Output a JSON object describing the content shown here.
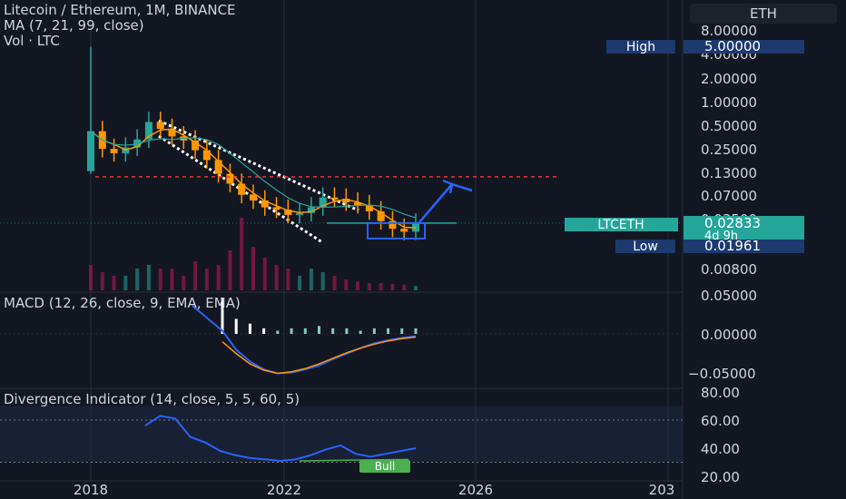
{
  "header": {
    "symbol_line": "Litecoin / Ethereum, 1M, BINANCE",
    "ma_line": "MA (7, 21, 99, close)",
    "vol_line": "Vol · LTC",
    "currency_button": "ETH"
  },
  "colors": {
    "background": "#131722",
    "up_candle": "#26a69a",
    "down_candle": "#ff9800",
    "grid": "#2a2e39",
    "accent_blue": "#2962ff",
    "text": "#d1d4dc",
    "red_dotted": "#e53935"
  },
  "price_axis": {
    "labels": [
      "8.00000",
      "4.00000",
      "2.00000",
      "1.00000",
      "0.50000",
      "0.25000",
      "0.13000",
      "0.07000",
      "0.03500",
      "0.01800",
      "0.00800"
    ],
    "high_label": "High",
    "high_value": "5.00000",
    "symbol_tag": "LTCETH",
    "last_price": "0.02833",
    "countdown": "4d 9h",
    "low_label": "Low",
    "low_value": "0.01961"
  },
  "macd": {
    "title": "MACD (12, 26, close, 9, EMA, EMA)",
    "axis_labels": [
      "0.05000",
      "0.00000",
      "−0.05000"
    ]
  },
  "divergence": {
    "title": "Divergence Indicator (14, close, 5, 5, 60, 5)",
    "axis_labels": [
      "80.00",
      "60.00",
      "40.00",
      "20.00"
    ],
    "bull_label": "Bull"
  },
  "time_axis": {
    "labels": [
      "2018",
      "2022",
      "2026",
      "203"
    ]
  },
  "chart_data": {
    "type": "candlestick",
    "scale": "log",
    "x": [
      "2017-12",
      "2018-03",
      "2018-06",
      "2018-09",
      "2018-12",
      "2019-03",
      "2019-06",
      "2019-09",
      "2019-12",
      "2020-03",
      "2020-06",
      "2020-09",
      "2020-12",
      "2021-03",
      "2021-06",
      "2021-09",
      "2021-12",
      "2022-03",
      "2022-06",
      "2022-09",
      "2022-12",
      "2023-03",
      "2023-06",
      "2023-09",
      "2023-12",
      "2024-03",
      "2024-06",
      "2024-09",
      "2024-12"
    ],
    "close": [
      0.42,
      0.25,
      0.22,
      0.26,
      0.33,
      0.55,
      0.45,
      0.36,
      0.32,
      0.24,
      0.18,
      0.12,
      0.09,
      0.065,
      0.055,
      0.045,
      0.042,
      0.036,
      0.038,
      0.045,
      0.06,
      0.058,
      0.052,
      0.048,
      0.04,
      0.03,
      0.024,
      0.022,
      0.028
    ],
    "high": 5.0,
    "low": 0.01961,
    "last": 0.02833,
    "resistance_level": 0.11,
    "volume_relative": [
      0.35,
      0.25,
      0.2,
      0.2,
      0.3,
      0.35,
      0.3,
      0.3,
      0.2,
      0.4,
      0.3,
      0.35,
      0.55,
      1.0,
      0.6,
      0.45,
      0.35,
      0.3,
      0.2,
      0.3,
      0.25,
      0.2,
      0.15,
      0.12,
      0.1,
      0.1,
      0.09,
      0.08,
      0.06
    ],
    "macd_line": [
      0.004,
      -0.02,
      -0.035,
      -0.045,
      -0.05,
      -0.049,
      -0.045,
      -0.04,
      -0.032,
      -0.025,
      -0.018,
      -0.012,
      -0.008,
      -0.005,
      -0.003
    ],
    "signal_line": [
      -0.01,
      -0.025,
      -0.038,
      -0.046,
      -0.05,
      -0.048,
      -0.044,
      -0.038,
      -0.031,
      -0.024,
      -0.018,
      -0.013,
      -0.009,
      -0.006,
      -0.004
    ],
    "rsi": [
      56,
      63,
      61,
      48,
      44,
      38,
      35,
      33,
      32,
      31,
      32,
      35,
      39,
      42,
      36,
      34,
      36,
      38,
      40
    ],
    "rsi_levels": [
      60,
      30
    ]
  }
}
